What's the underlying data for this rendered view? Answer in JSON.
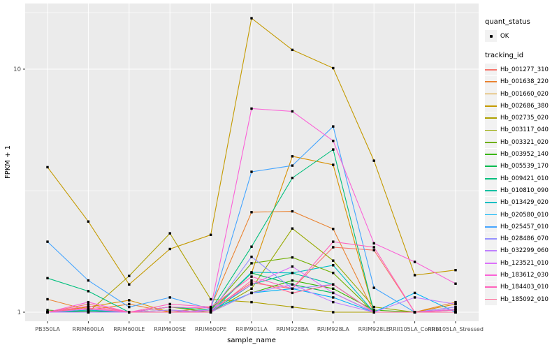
{
  "chart_data": {
    "type": "line",
    "title": "",
    "xlabel": "sample_name",
    "ylabel": "FPKM + 1",
    "y_scale": "log10",
    "y_ticks": [
      1,
      10
    ],
    "y_minor_gridlines": [
      3.162,
      17.1
    ],
    "ylim": [
      0.92,
      18.6
    ],
    "grid": true,
    "legend_position": "right",
    "categories": [
      "PB350LA",
      "RRIM600LA",
      "RRIM600LE",
      "RRIM600SE",
      "RRIM600PE",
      "RRIM901LA",
      "RRIM928BA",
      "RRIM928LA",
      "RRIM928LE",
      "RRII105LA_Control",
      "RRII105LA_Stressed"
    ],
    "point_color": "#000000",
    "panel_bg": "#ebebeb",
    "grid_color": "#ffffff",
    "tick_label_color": "#4d4d4d",
    "legend": {
      "quant_status_title": "quant_status",
      "quant_status_items": [
        {
          "label": "OK",
          "marker": "point"
        }
      ],
      "tracking_id_title": "tracking_id"
    },
    "series": [
      {
        "name": "Hb_001277_310",
        "color": "#F8766D",
        "values": [
          1.0,
          1.08,
          1.0,
          1.0,
          1.02,
          1.32,
          1.25,
          1.85,
          1.8,
          1.0,
          1.05
        ]
      },
      {
        "name": "Hb_001638_220",
        "color": "#EA8331",
        "values": [
          1.13,
          1.02,
          1.08,
          1.0,
          1.05,
          2.58,
          2.6,
          2.2,
          1.0,
          1.0,
          1.1
        ]
      },
      {
        "name": "Hb_001660_020",
        "color": "#D89000",
        "values": [
          1.0,
          1.05,
          1.12,
          1.0,
          1.02,
          1.45,
          4.38,
          4.04,
          1.0,
          1.0,
          1.08
        ]
      },
      {
        "name": "Hb_002686_380",
        "color": "#C49A00",
        "values": [
          3.95,
          2.36,
          1.3,
          1.82,
          2.08,
          16.2,
          12.0,
          10.1,
          4.2,
          1.42,
          1.49
        ]
      },
      {
        "name": "Hb_002735_020",
        "color": "#AFA100",
        "values": [
          1.0,
          1.0,
          1.41,
          2.11,
          1.13,
          1.1,
          1.05,
          1.0,
          1.0,
          1.0,
          1.0
        ]
      },
      {
        "name": "Hb_003117_040",
        "color": "#97A900",
        "values": [
          1.0,
          1.02,
          1.0,
          1.05,
          1.0,
          1.25,
          2.21,
          1.63,
          1.05,
          1.0,
          1.03
        ]
      },
      {
        "name": "Hb_003321_020",
        "color": "#71B000",
        "values": [
          1.0,
          1.0,
          1.0,
          1.0,
          1.02,
          1.59,
          1.68,
          1.45,
          1.0,
          1.0,
          1.0
        ]
      },
      {
        "name": "Hb_003952_140",
        "color": "#39B600",
        "values": [
          1.02,
          1.0,
          1.0,
          1.02,
          1.0,
          1.2,
          1.35,
          1.25,
          1.02,
          1.0,
          1.0
        ]
      },
      {
        "name": "Hb_005539_170",
        "color": "#00BB4E",
        "values": [
          1.0,
          1.01,
          1.0,
          1.0,
          1.0,
          1.45,
          1.3,
          1.2,
          1.0,
          1.0,
          1.0
        ]
      },
      {
        "name": "Hb_009421_010",
        "color": "#00BF7D",
        "values": [
          1.38,
          1.22,
          1.0,
          1.05,
          1.02,
          1.86,
          3.57,
          4.67,
          1.0,
          1.0,
          1.0
        ]
      },
      {
        "name": "Hb_010810_090",
        "color": "#00C1A3",
        "values": [
          1.0,
          1.0,
          1.0,
          1.0,
          1.0,
          1.3,
          1.45,
          1.3,
          1.0,
          1.0,
          1.02
        ]
      },
      {
        "name": "Hb_013429_020",
        "color": "#00BFC4",
        "values": [
          1.0,
          1.02,
          1.0,
          1.0,
          1.0,
          1.46,
          1.45,
          1.56,
          1.0,
          1.0,
          1.0
        ]
      },
      {
        "name": "Hb_020580_010",
        "color": "#00B2F6",
        "values": [
          1.0,
          1.0,
          1.0,
          1.0,
          1.02,
          1.2,
          1.25,
          1.15,
          1.0,
          1.2,
          1.0
        ]
      },
      {
        "name": "Hb_025457_010",
        "color": "#45A5FF",
        "values": [
          1.95,
          1.35,
          1.05,
          1.15,
          1.03,
          3.78,
          4.01,
          5.81,
          1.26,
          1.0,
          1.0
        ]
      },
      {
        "name": "Hb_028486_070",
        "color": "#9590FF",
        "values": [
          1.0,
          1.0,
          1.0,
          1.0,
          1.0,
          1.69,
          1.25,
          1.3,
          1.0,
          1.0,
          1.05
        ]
      },
      {
        "name": "Hb_032299_060",
        "color": "#BF80FF",
        "values": [
          1.0,
          1.0,
          1.0,
          1.02,
          1.0,
          1.2,
          1.3,
          1.1,
          1.0,
          1.15,
          1.08
        ]
      },
      {
        "name": "Hb_123521_010",
        "color": "#DC71FA",
        "values": [
          1.0,
          1.03,
          1.0,
          1.0,
          1.02,
          1.3,
          1.54,
          1.2,
          1.0,
          1.0,
          1.03
        ]
      },
      {
        "name": "Hb_183612_030",
        "color": "#FB61D7",
        "values": [
          1.0,
          1.1,
          1.0,
          1.05,
          1.04,
          6.88,
          6.7,
          5.07,
          1.92,
          1.61,
          1.31
        ]
      },
      {
        "name": "Hb_184403_010",
        "color": "#FF62BC",
        "values": [
          1.0,
          1.06,
          1.0,
          1.08,
          1.05,
          1.4,
          1.25,
          1.95,
          1.85,
          1.0,
          1.02
        ]
      },
      {
        "name": "Hb_185092_010",
        "color": "#FF6A98",
        "values": [
          1.0,
          1.04,
          1.0,
          1.0,
          1.0,
          1.35,
          1.2,
          1.3,
          1.0,
          1.0,
          1.0
        ]
      }
    ]
  }
}
